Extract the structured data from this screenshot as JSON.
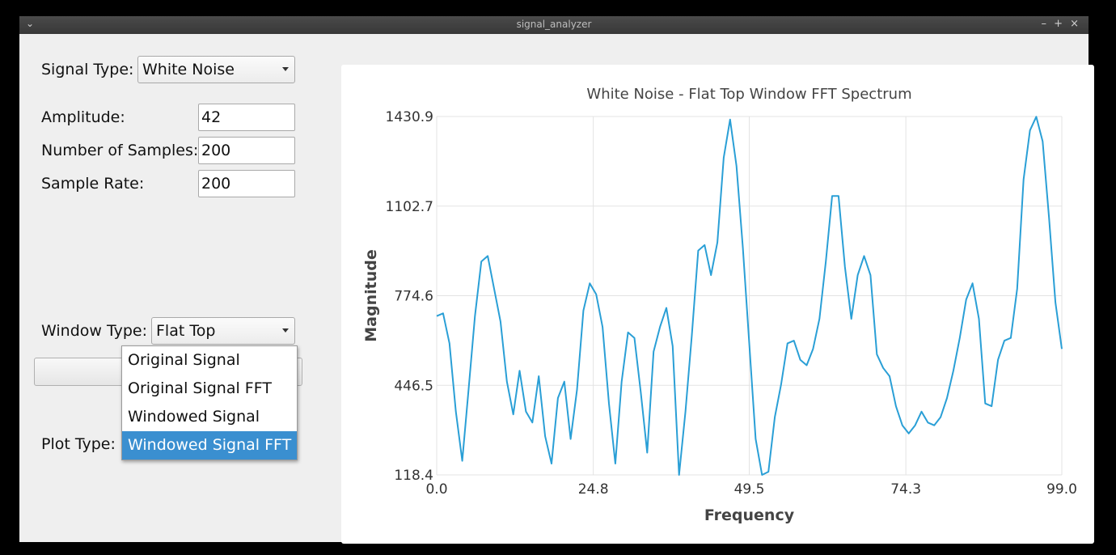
{
  "window": {
    "title": "signal_analyzer",
    "controls": {
      "menu": "⌄",
      "minimize": "–",
      "maximize": "+",
      "close": "×"
    }
  },
  "controls": {
    "signal_type_label": "Signal Type:",
    "signal_type_value": "White Noise",
    "amplitude_label": "Amplitude:",
    "amplitude_value": "42",
    "samples_label": "Number of Samples:",
    "samples_value": "200",
    "sample_rate_label": "Sample Rate:",
    "sample_rate_value": "200",
    "window_type_label": "Window Type:",
    "window_type_value": "Flat Top",
    "plot_type_label": "Plot Type:"
  },
  "plot_type_dropdown": {
    "options": [
      "Original Signal",
      "Original Signal FFT",
      "Windowed Signal",
      "Windowed Signal FFT"
    ],
    "selected_index": 3
  },
  "colors": {
    "line": "#2a9fd6",
    "selection": "#3a8fd0",
    "grid": "#e3e3e3"
  },
  "chart_data": {
    "type": "line",
    "title": "White Noise - Flat Top Window FFT Spectrum",
    "xlabel": "Frequency",
    "ylabel": "Magnitude",
    "xlim": [
      0,
      99
    ],
    "ylim": [
      118.4,
      1430.9
    ],
    "xticks": [
      "0.0",
      "24.8",
      "49.5",
      "74.3",
      "99.0"
    ],
    "yticks": [
      "118.4",
      "446.5",
      "774.6",
      "1102.7",
      "1430.9"
    ],
    "grid": true,
    "series": [
      {
        "values": [
          700,
          710,
          600,
          350,
          170,
          430,
          700,
          900,
          920,
          800,
          680,
          460,
          340,
          500,
          350,
          310,
          480,
          260,
          160,
          400,
          460,
          250,
          430,
          720,
          820,
          780,
          660,
          380,
          160,
          460,
          640,
          620,
          420,
          200,
          570,
          660,
          730,
          590,
          118.4,
          350,
          630,
          940,
          960,
          850,
          970,
          1280,
          1420,
          1250,
          950,
          600,
          250,
          118.4,
          130,
          330,
          450,
          600,
          610,
          540,
          520,
          580,
          690,
          900,
          1140,
          1140,
          880,
          690,
          850,
          920,
          850,
          560,
          510,
          480,
          370,
          300,
          270,
          300,
          350,
          310,
          300,
          330,
          400,
          500,
          620,
          760,
          820,
          690,
          380,
          370,
          540,
          610,
          620,
          800,
          1200,
          1380,
          1430,
          1340,
          1060,
          750,
          580
        ]
      }
    ]
  }
}
